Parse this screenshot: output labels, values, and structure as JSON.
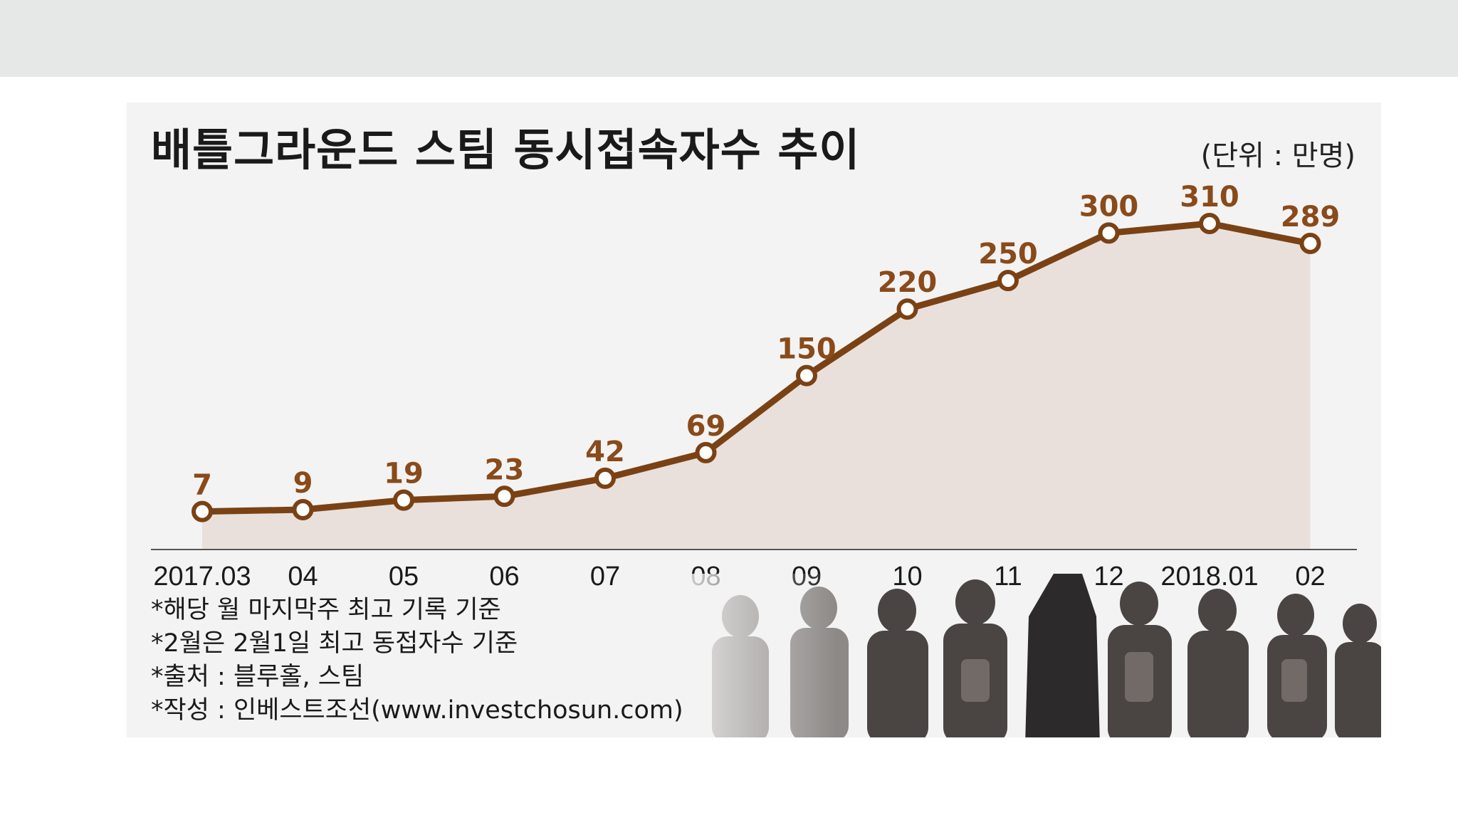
{
  "chart_data": {
    "type": "line",
    "title": "배틀그라운드 스팀 동시접속자수 추이",
    "unit_label": "(단위 : 만명)",
    "categories": [
      "2017.03",
      "04",
      "05",
      "06",
      "07",
      "08",
      "09",
      "10",
      "11",
      "12",
      "2018.01",
      "02"
    ],
    "series": [
      {
        "values": [
          7,
          9,
          19,
          23,
          42,
          69,
          150,
          220,
          250,
          300,
          310,
          289
        ],
        "color": "#7a4214"
      }
    ],
    "data_labels": [
      "7",
      "9",
      "19",
      "23",
      "42",
      "69",
      "150",
      "220",
      "250",
      "300",
      "310",
      "289"
    ],
    "ylim": [
      0,
      310
    ],
    "grid": false,
    "fill_area": true,
    "label_color": "#8a4a1a",
    "area_color": "#e9e0dc"
  },
  "notes": [
    "*해당 월 마지막주 최고 기록 기준",
    "*2월은 2월1일 최고 동접자수 기준",
    "*출처 : 블루홀, 스팀",
    "*작성 : 인베스트조선(www.investchosun.com)"
  ],
  "art_icon": "character-lineup-illustration"
}
